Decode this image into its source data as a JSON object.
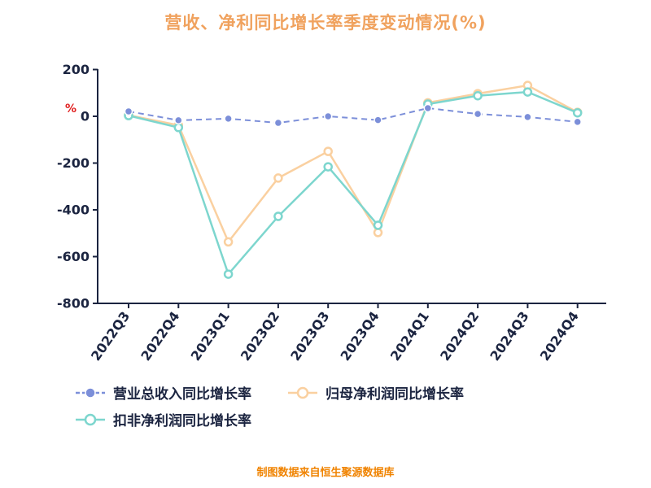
{
  "title": "营收、净利同比增长率季度变动情况(%)",
  "y_axis_unit": "%",
  "footer": "制图数据来自恒生聚源数据库",
  "colors": {
    "title": "#F0A25E",
    "axis": "#1B2440",
    "unit": "#E02020",
    "footer": "#F08300",
    "series_revenue": "#7C8FD9",
    "series_net_profit": "#FAD0A0",
    "series_non_recurring": "#7DD6CE"
  },
  "chart_data": {
    "type": "line",
    "title": "营收、净利同比增长率季度变动情况(%)",
    "xlabel": "",
    "ylabel": "%",
    "ylim": [
      -800,
      200
    ],
    "yticks": [
      200,
      0,
      -200,
      -400,
      -600,
      -800
    ],
    "grid": false,
    "legend_position": "bottom",
    "categories": [
      "2022Q3",
      "2022Q4",
      "2023Q1",
      "2023Q2",
      "2023Q3",
      "2023Q4",
      "2024Q1",
      "2024Q2",
      "2024Q3",
      "2024Q4"
    ],
    "series": [
      {
        "name": "营业总收入同比增长率",
        "color": "#7C8FD9",
        "dash": true,
        "marker": "solid",
        "width": 2,
        "values": [
          21,
          -17,
          -10,
          -28,
          0,
          -16,
          35,
          10,
          -3,
          -24
        ]
      },
      {
        "name": "归母净利润同比增长率",
        "color": "#FAD0A0",
        "dash": false,
        "marker": "hollow",
        "width": 2.5,
        "values": [
          5,
          -38,
          -537,
          -264,
          -150,
          -497,
          58,
          97,
          132,
          17
        ]
      },
      {
        "name": "扣非净利润同比增长率",
        "color": "#7DD6CE",
        "dash": false,
        "marker": "hollow",
        "width": 2.5,
        "values": [
          3,
          -48,
          -675,
          -428,
          -216,
          -466,
          52,
          88,
          104,
          15
        ]
      }
    ]
  }
}
